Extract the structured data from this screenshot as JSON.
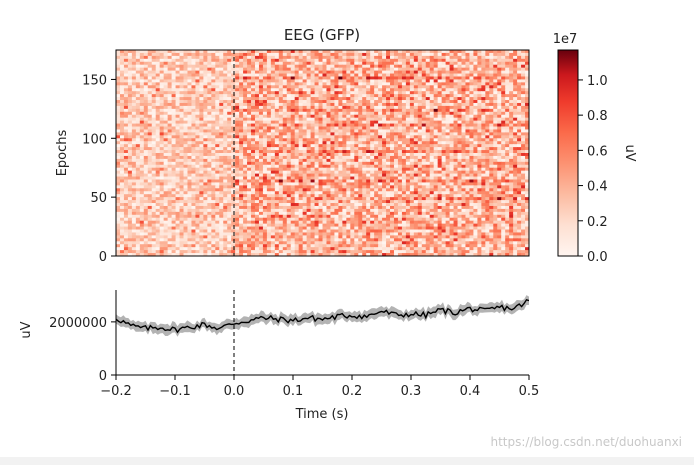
{
  "watermark": "https://blog.csdn.net/duohuanxi",
  "chart_data": [
    {
      "type": "heatmap",
      "title": "EEG (GFP)",
      "ylabel": "Epochs",
      "xlim": [
        -0.2,
        0.5
      ],
      "ylim": [
        0,
        175
      ],
      "yticks": [
        "0",
        "50",
        "100",
        "150"
      ],
      "colormap": "Reds",
      "event_line_x": 0.0,
      "colorbar": {
        "label": "uV",
        "exponent_label": "1e7",
        "ticks": [
          "0.0",
          "0.2",
          "0.4",
          "0.6",
          "0.8",
          "1.0"
        ],
        "range": [
          0.0,
          1.17
        ]
      },
      "description_values": "Noisy per-epoch GFP; weaker before 0 s, stronger after 0 s with horizontal dark streaks"
    },
    {
      "type": "line",
      "xlabel": "Time (s)",
      "ylabel": "uV",
      "xlim": [
        -0.2,
        0.5
      ],
      "ylim": [
        0,
        3200000
      ],
      "xticks": [
        "−0.2",
        "−0.1",
        "0.0",
        "0.1",
        "0.2",
        "0.3",
        "0.4",
        "0.5"
      ],
      "yticks": [
        "0",
        "2000000"
      ],
      "event_line_x": 0.0,
      "series": [
        {
          "x": [
            -0.2,
            -0.175,
            -0.15,
            -0.125,
            -0.1,
            -0.075,
            -0.05,
            -0.025,
            0.0,
            0.025,
            0.05,
            0.075,
            0.1,
            0.125,
            0.15,
            0.175,
            0.2,
            0.225,
            0.25,
            0.275,
            0.3,
            0.325,
            0.35,
            0.375,
            0.4,
            0.425,
            0.45,
            0.475,
            0.5
          ],
          "values": [
            2150000,
            1850000,
            1750000,
            1800000,
            1700000,
            1800000,
            1900000,
            1750000,
            1950000,
            2050000,
            2150000,
            2100000,
            2050000,
            2150000,
            2100000,
            2200000,
            2250000,
            2200000,
            2400000,
            2250000,
            2300000,
            2250000,
            2450000,
            2350000,
            2500000,
            2400000,
            2550000,
            2500000,
            2800000
          ],
          "band": 180000
        }
      ]
    }
  ]
}
